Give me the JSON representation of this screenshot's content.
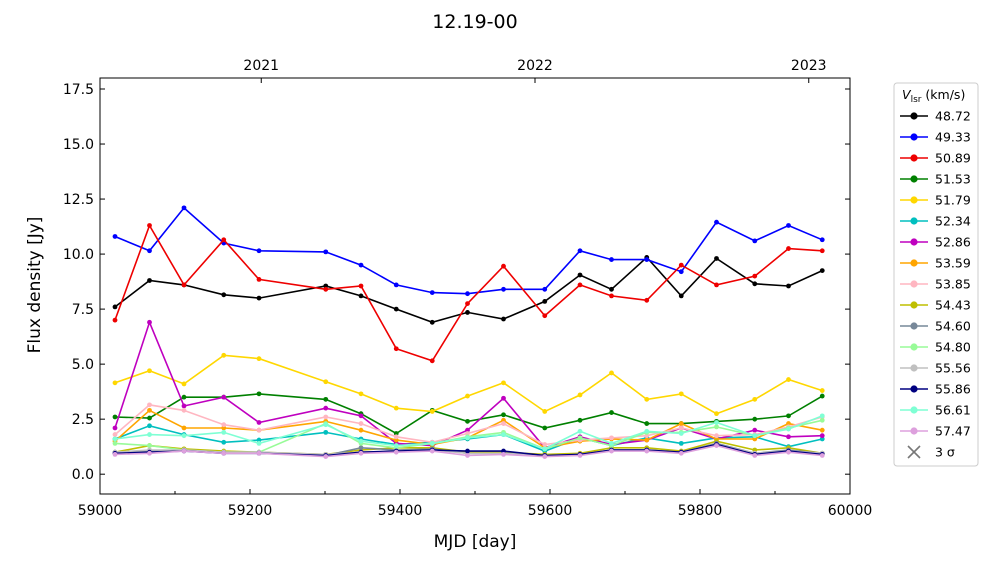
{
  "chart_data": {
    "type": "line",
    "title": "12.19-00",
    "xlabel": "MJD [day]",
    "ylabel": "Flux density [Jy]",
    "xlim": [
      59000,
      60000
    ],
    "ylim": [
      -0.9,
      18
    ],
    "xticks": [
      59000,
      59200,
      59400,
      59600,
      59800,
      60000
    ],
    "yticks": [
      0.0,
      2.5,
      5.0,
      7.5,
      10.0,
      12.5,
      15.0,
      17.5
    ],
    "top_axis": {
      "ticks": [
        {
          "label": "2021",
          "x": 59215
        },
        {
          "label": "2022",
          "x": 59580
        },
        {
          "label": "2023",
          "x": 59945
        }
      ]
    },
    "grid": false,
    "legend": {
      "title_main": "V",
      "title_sub": "lsr",
      "title_unit": "(km/s)",
      "placement": "outside-right",
      "sigma_label": "3 σ"
    },
    "x": [
      59020,
      59066,
      59112,
      59165,
      59212,
      59301,
      59348,
      59395,
      59443,
      59490,
      59538,
      59593,
      59640,
      59682,
      59729,
      59775,
      59822,
      59873,
      59918,
      59963
    ],
    "series": [
      {
        "name": "48.72",
        "color": "#000000",
        "values": [
          7.6,
          8.8,
          8.6,
          8.15,
          8.0,
          8.55,
          8.1,
          7.5,
          6.9,
          7.35,
          7.05,
          7.85,
          9.05,
          8.4,
          9.85,
          8.1,
          9.8,
          8.65,
          8.55,
          9.25
        ]
      },
      {
        "name": "49.33",
        "color": "#0000ff",
        "values": [
          10.8,
          10.15,
          12.1,
          10.5,
          10.15,
          10.1,
          9.5,
          8.6,
          8.25,
          8.2,
          8.4,
          8.4,
          10.15,
          9.75,
          9.75,
          9.2,
          11.45,
          10.6,
          11.3,
          10.65
        ]
      },
      {
        "name": "50.89",
        "color": "#ee0000",
        "values": [
          7.0,
          11.3,
          8.6,
          10.65,
          8.85,
          8.4,
          8.55,
          5.7,
          5.15,
          7.75,
          9.45,
          7.2,
          8.6,
          8.1,
          7.9,
          9.5,
          8.6,
          9.0,
          10.25,
          10.15
        ]
      },
      {
        "name": "51.53",
        "color": "#008000",
        "values": [
          2.6,
          2.55,
          3.5,
          3.5,
          3.65,
          3.4,
          2.75,
          1.85,
          2.9,
          2.4,
          2.7,
          2.1,
          2.45,
          2.8,
          2.3,
          2.3,
          2.4,
          2.5,
          2.65,
          3.55
        ]
      },
      {
        "name": "51.79",
        "color": "#ffd700",
        "values": [
          4.15,
          4.7,
          4.1,
          5.4,
          5.25,
          4.2,
          3.65,
          3.0,
          2.85,
          3.55,
          4.15,
          2.85,
          3.6,
          4.6,
          3.4,
          3.65,
          2.75,
          3.4,
          4.3,
          3.8
        ]
      },
      {
        "name": "52.34",
        "color": "#00bfbf",
        "values": [
          1.6,
          2.2,
          1.8,
          1.45,
          1.55,
          1.9,
          1.6,
          1.35,
          1.45,
          1.6,
          1.8,
          1.05,
          1.65,
          1.3,
          1.65,
          1.4,
          1.65,
          1.7,
          1.25,
          1.6
        ]
      },
      {
        "name": "52.86",
        "color": "#bf00bf",
        "values": [
          2.1,
          6.9,
          3.1,
          3.5,
          2.35,
          3.0,
          2.65,
          1.4,
          1.3,
          2.0,
          3.45,
          1.2,
          1.7,
          1.35,
          1.55,
          2.1,
          1.6,
          2.0,
          1.7,
          1.75
        ]
      },
      {
        "name": "53.59",
        "color": "#ffa500",
        "values": [
          1.5,
          2.9,
          2.1,
          2.1,
          2.0,
          2.4,
          2.0,
          1.55,
          1.35,
          1.65,
          2.45,
          1.2,
          1.5,
          1.6,
          1.55,
          2.3,
          1.6,
          1.6,
          2.3,
          2.0
        ]
      },
      {
        "name": "53.85",
        "color": "#ffb6c1",
        "values": [
          1.8,
          3.15,
          2.9,
          2.25,
          2.0,
          2.6,
          2.3,
          1.7,
          1.45,
          1.85,
          2.3,
          1.35,
          1.55,
          1.65,
          1.75,
          2.1,
          1.75,
          1.8,
          2.15,
          2.6
        ]
      },
      {
        "name": "54.43",
        "color": "#bfbf00",
        "values": [
          1.0,
          1.3,
          1.15,
          1.05,
          1.0,
          0.9,
          1.1,
          1.2,
          1.2,
          1.0,
          1.0,
          0.9,
          0.95,
          1.2,
          1.2,
          1.05,
          1.5,
          1.1,
          1.2,
          0.95
        ]
      },
      {
        "name": "54.60",
        "color": "#778899",
        "values": [
          1.0,
          1.05,
          1.1,
          1.0,
          1.0,
          0.85,
          1.2,
          1.1,
          1.15,
          0.95,
          0.95,
          0.85,
          0.9,
          1.1,
          1.1,
          1.0,
          1.4,
          0.95,
          1.1,
          0.95
        ]
      },
      {
        "name": "54.80",
        "color": "#98fb98",
        "values": [
          1.4,
          1.3,
          1.1,
          1.0,
          1.0,
          2.3,
          1.4,
          1.2,
          1.4,
          1.7,
          1.9,
          1.15,
          1.65,
          1.3,
          1.9,
          1.9,
          2.15,
          1.75,
          2.1,
          2.45
        ]
      },
      {
        "name": "55.56",
        "color": "#c0c0c0",
        "values": [
          1.0,
          1.1,
          1.1,
          1.0,
          1.0,
          0.9,
          1.0,
          1.05,
          1.1,
          0.95,
          0.95,
          0.85,
          0.9,
          1.1,
          1.1,
          1.0,
          1.35,
          0.95,
          1.05,
          0.95
        ]
      },
      {
        "name": "55.86",
        "color": "#000080",
        "values": [
          0.95,
          1.0,
          1.05,
          0.95,
          0.95,
          0.85,
          1.0,
          1.05,
          1.1,
          1.05,
          1.05,
          0.85,
          0.9,
          1.1,
          1.1,
          1.0,
          1.35,
          0.9,
          1.05,
          0.9
        ]
      },
      {
        "name": "56.61",
        "color": "#7fffd4",
        "values": [
          1.6,
          1.8,
          1.75,
          1.9,
          1.4,
          2.25,
          1.5,
          1.3,
          1.4,
          1.65,
          1.8,
          1.15,
          1.95,
          1.4,
          1.95,
          1.85,
          2.35,
          1.75,
          2.05,
          2.65
        ]
      },
      {
        "name": "57.47",
        "color": "#dda0dd",
        "values": [
          0.9,
          0.95,
          1.05,
          0.95,
          0.95,
          0.8,
          0.95,
          1.0,
          1.05,
          0.85,
          0.9,
          0.8,
          0.85,
          1.05,
          1.05,
          0.95,
          1.3,
          0.85,
          1.0,
          0.85
        ]
      }
    ],
    "sigma_marker_color": "#777777"
  }
}
